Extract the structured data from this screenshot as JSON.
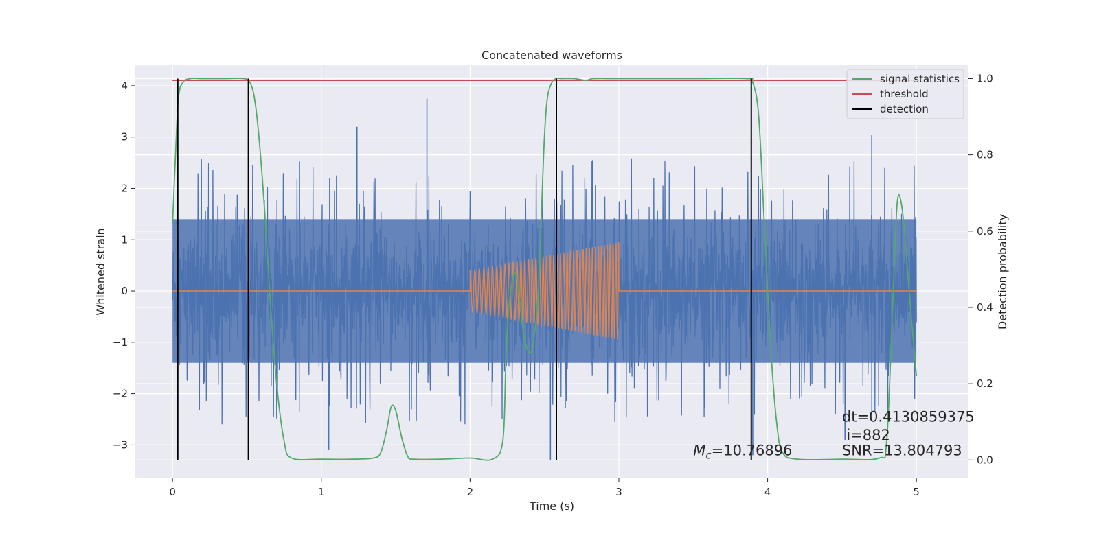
{
  "chart_data": {
    "type": "line",
    "title": "Concatenated waveforms",
    "xlabel": "Time (s)",
    "ylabel": "Whitened strain",
    "ylabel_right": "Detection probability",
    "xlim": [
      -0.25,
      5.35
    ],
    "ylim": [
      -3.65,
      4.4
    ],
    "ylim_right": [
      -0.048,
      1.035
    ],
    "xticks": [
      0,
      1,
      2,
      3,
      4,
      5
    ],
    "yticks": [
      -3,
      -2,
      -1,
      0,
      1,
      2,
      3,
      4
    ],
    "yticks_right": [
      0.0,
      0.2,
      0.4,
      0.6,
      0.8,
      1.0
    ],
    "grid": true,
    "legend_position": "top-right",
    "colors": {
      "strain": "#4c72b0",
      "waveform": "#dd8452",
      "signal_statistics": "#55a868",
      "threshold": "#c44e52",
      "detection": "#000000",
      "axes_background": "#eaeaf2",
      "grid": "#ffffff"
    },
    "series": [
      {
        "name": "signal statistics",
        "axis": "right",
        "x": [
          0.0,
          0.02,
          0.04,
          0.07,
          0.12,
          0.2,
          0.35,
          0.48,
          0.52,
          0.55,
          0.58,
          0.62,
          0.66,
          0.7,
          0.75,
          0.8,
          1.0,
          1.2,
          1.35,
          1.4,
          1.44,
          1.47,
          1.5,
          1.54,
          1.58,
          1.62,
          1.8,
          2.0,
          2.15,
          2.22,
          2.24,
          2.26,
          2.3,
          2.33,
          2.36,
          2.4,
          2.43,
          2.46,
          2.48,
          2.5,
          2.52,
          2.55,
          2.58,
          2.62,
          2.7,
          2.78,
          2.83,
          3.0,
          3.5,
          3.86,
          3.9,
          3.94,
          3.98,
          4.02,
          4.06,
          4.1,
          4.2,
          4.5,
          4.75,
          4.8,
          4.84,
          4.87,
          4.9,
          4.93,
          4.96,
          5.0
        ],
        "values": [
          0.62,
          0.8,
          0.95,
          0.99,
          1.0,
          1.0,
          1.0,
          1.0,
          0.99,
          0.95,
          0.85,
          0.65,
          0.4,
          0.2,
          0.05,
          0.005,
          0.002,
          0.002,
          0.005,
          0.02,
          0.08,
          0.14,
          0.13,
          0.06,
          0.01,
          0.002,
          0.002,
          0.005,
          0.002,
          0.05,
          0.25,
          0.4,
          0.49,
          0.43,
          0.33,
          0.28,
          0.32,
          0.45,
          0.65,
          0.85,
          0.95,
          0.99,
          1.0,
          1.0,
          1.0,
          0.995,
          1.0,
          1.0,
          1.0,
          1.0,
          0.99,
          0.9,
          0.6,
          0.3,
          0.1,
          0.02,
          0.002,
          0.002,
          0.005,
          0.05,
          0.4,
          0.67,
          0.67,
          0.55,
          0.4,
          0.22
        ]
      },
      {
        "name": "threshold",
        "axis": "right",
        "x": [
          0.0,
          5.0
        ],
        "values": [
          0.995,
          0.995
        ]
      },
      {
        "name": "detection",
        "axis": "right",
        "type": "vlines",
        "x": [
          0.035,
          0.51,
          2.58,
          3.89
        ],
        "range": [
          0.0,
          1.0
        ]
      }
    ],
    "strain": {
      "axis": "left",
      "x_range": [
        0.0,
        5.0
      ],
      "envelope_typical": 1.4,
      "peaks": [
        {
          "x": 1.71,
          "y": 3.75
        },
        {
          "x": 1.24,
          "y": 3.2
        },
        {
          "x": 4.7,
          "y": 3.05
        },
        {
          "x": 4.52,
          "y": -2.9
        },
        {
          "x": 1.05,
          "y": -3.1
        },
        {
          "x": 2.54,
          "y": -3.3
        },
        {
          "x": 3.9,
          "y": -3.2
        }
      ]
    },
    "waveform": {
      "axis": "left",
      "start": 2.0,
      "end": 3.0,
      "amplitude_start": 0.4,
      "amplitude_end": 0.95,
      "cycles": 42
    },
    "annotations": [
      {
        "text_main": "M",
        "text_sub": "c",
        "text_rest": "=10.76896",
        "x": 3.5,
        "y": -3.2
      },
      {
        "text": "dt=0.4130859375",
        "x": 4.5,
        "y": -2.55
      },
      {
        "text": "i=882",
        "x": 4.53,
        "y": -2.9
      },
      {
        "text": "SNR=13.804793",
        "x": 4.5,
        "y": -3.2
      }
    ]
  }
}
